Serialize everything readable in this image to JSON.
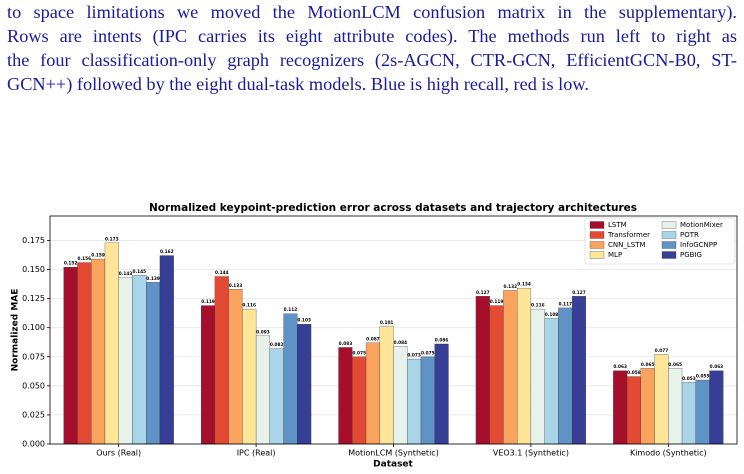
{
  "text": {
    "lines": [
      "to space limitations we moved the MotionLCM confusion matrix in the supplementary).",
      "Rows are intents (IPC carries its eight attribute codes). The methods run left to right as",
      "the four classification-only graph recognizers (2s-AGCN, CTR-GCN, EfficientGCN-B0, ST-",
      "GCN++) followed by the eight dual-task models. Blue is high recall, red is low."
    ]
  },
  "chart_data": {
    "type": "bar",
    "title": "Normalized keypoint-prediction error across datasets and trajectory architectures",
    "xlabel": "Dataset",
    "ylabel": "Normalized MAE",
    "categories": [
      "Ours (Real)",
      "IPC (Real)",
      "MotionLCM (Synthetic)",
      "VEO3.1 (Synthetic)",
      "Kimodo (Synthetic)"
    ],
    "series": [
      {
        "name": "LSTM",
        "color": "#a50f2b",
        "values": [
          0.152,
          0.119,
          0.083,
          0.127,
          0.063
        ]
      },
      {
        "name": "Transformer",
        "color": "#e34a33",
        "values": [
          0.156,
          0.144,
          0.075,
          0.119,
          0.058
        ]
      },
      {
        "name": "CNN_LSTM",
        "color": "#f9a35e",
        "values": [
          0.159,
          0.133,
          0.087,
          0.132,
          0.065
        ]
      },
      {
        "name": "MLP",
        "color": "#fee597",
        "values": [
          0.173,
          0.116,
          0.101,
          0.134,
          0.077
        ]
      },
      {
        "name": "MotionMixer",
        "color": "#e6f2ea",
        "values": [
          0.143,
          0.093,
          0.084,
          0.116,
          0.065
        ]
      },
      {
        "name": "POTR",
        "color": "#a8d5e8",
        "values": [
          0.145,
          0.082,
          0.073,
          0.108,
          0.053
        ]
      },
      {
        "name": "InfoGCNPP",
        "color": "#5f93c6",
        "values": [
          0.139,
          0.112,
          0.075,
          0.117,
          0.055
        ]
      },
      {
        "name": "PGBIG",
        "color": "#363e96",
        "values": [
          0.162,
          0.103,
          0.086,
          0.127,
          0.063
        ]
      }
    ],
    "ylim": [
      0,
      0.196
    ],
    "yticks": [
      {
        "value": 0,
        "label": "0.000"
      },
      {
        "value": 0.025,
        "label": "0.025"
      },
      {
        "value": 0.05,
        "label": "0.050"
      },
      {
        "value": 0.075,
        "label": "0.075"
      },
      {
        "value": 0.1,
        "label": "0.100"
      },
      {
        "value": 0.125,
        "label": "0.125"
      },
      {
        "value": 0.15,
        "label": "0.150"
      },
      {
        "value": 0.175,
        "label": "0.175"
      }
    ],
    "grid": true,
    "legend": "upper right"
  }
}
